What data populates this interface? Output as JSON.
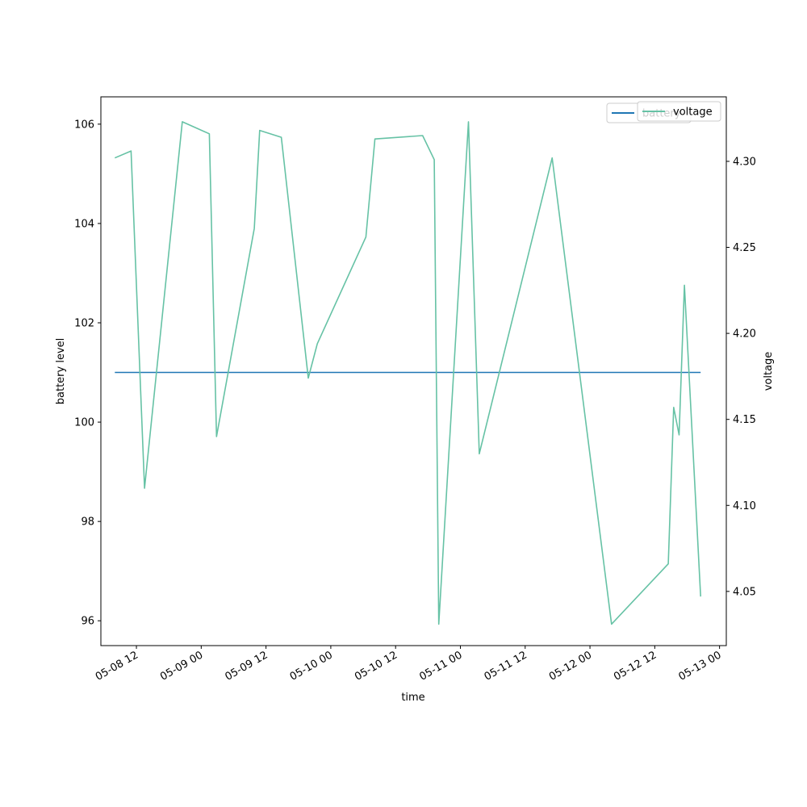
{
  "chart_data": {
    "type": "line",
    "xlabel": "time",
    "ylabel_left": "battery level",
    "ylabel_right": "voltage",
    "x_ticks": [
      "05-08 12",
      "05-09 00",
      "05-09 12",
      "05-10 00",
      "05-10 12",
      "05-11 00",
      "05-11 12",
      "05-12 00",
      "05-12 12",
      "05-13 00"
    ],
    "x_range": [
      "2024-05-08T05:25",
      "2024-05-13T01:15"
    ],
    "y_left_range": [
      95.5,
      106.55
    ],
    "y_left_ticks": [
      96,
      98,
      100,
      102,
      104,
      106
    ],
    "y_right_range": [
      4.0185,
      4.3375
    ],
    "y_right_ticks": [
      "4.05",
      "4.10",
      "4.15",
      "4.20",
      "4.25",
      "4.30"
    ],
    "series": [
      {
        "name": "battery",
        "axis": "left",
        "color": "#1f77b4",
        "points": [
          {
            "x": "2024-05-08T08:00",
            "y": 101
          },
          {
            "x": "2024-05-12T20:30",
            "y": 101
          }
        ]
      },
      {
        "name": "voltage",
        "axis": "right",
        "color": "#66c2a5",
        "points": [
          {
            "x": "2024-05-08T08:00",
            "y": 4.302
          },
          {
            "x": "2024-05-08T11:00",
            "y": 4.306
          },
          {
            "x": "2024-05-08T13:30",
            "y": 4.11
          },
          {
            "x": "2024-05-08T20:30",
            "y": 4.323
          },
          {
            "x": "2024-05-09T01:30",
            "y": 4.316
          },
          {
            "x": "2024-05-09T02:50",
            "y": 4.14
          },
          {
            "x": "2024-05-09T09:50",
            "y": 4.261
          },
          {
            "x": "2024-05-09T10:50",
            "y": 4.318
          },
          {
            "x": "2024-05-09T14:50",
            "y": 4.314
          },
          {
            "x": "2024-05-09T19:50",
            "y": 4.174
          },
          {
            "x": "2024-05-09T21:30",
            "y": 4.194
          },
          {
            "x": "2024-05-10T06:30",
            "y": 4.256
          },
          {
            "x": "2024-05-10T08:10",
            "y": 4.313
          },
          {
            "x": "2024-05-10T17:00",
            "y": 4.315
          },
          {
            "x": "2024-05-10T19:10",
            "y": 4.301
          },
          {
            "x": "2024-05-10T20:00",
            "y": 4.031
          },
          {
            "x": "2024-05-11T01:30",
            "y": 4.323
          },
          {
            "x": "2024-05-11T03:30",
            "y": 4.13
          },
          {
            "x": "2024-05-11T17:00",
            "y": 4.302
          },
          {
            "x": "2024-05-12T04:00",
            "y": 4.031
          },
          {
            "x": "2024-05-12T14:30",
            "y": 4.066
          },
          {
            "x": "2024-05-12T15:30",
            "y": 4.157
          },
          {
            "x": "2024-05-12T16:30",
            "y": 4.141
          },
          {
            "x": "2024-05-12T17:30",
            "y": 4.228
          },
          {
            "x": "2024-05-12T20:30",
            "y": 4.047
          }
        ]
      }
    ],
    "legends": [
      {
        "placement": "top-right",
        "entries": [
          {
            "label": "battery",
            "color": "#1f77b4"
          }
        ]
      },
      {
        "placement": "top-right",
        "entries": [
          {
            "label": "voltage",
            "color": "#66c2a5"
          }
        ]
      }
    ],
    "grid": false
  }
}
